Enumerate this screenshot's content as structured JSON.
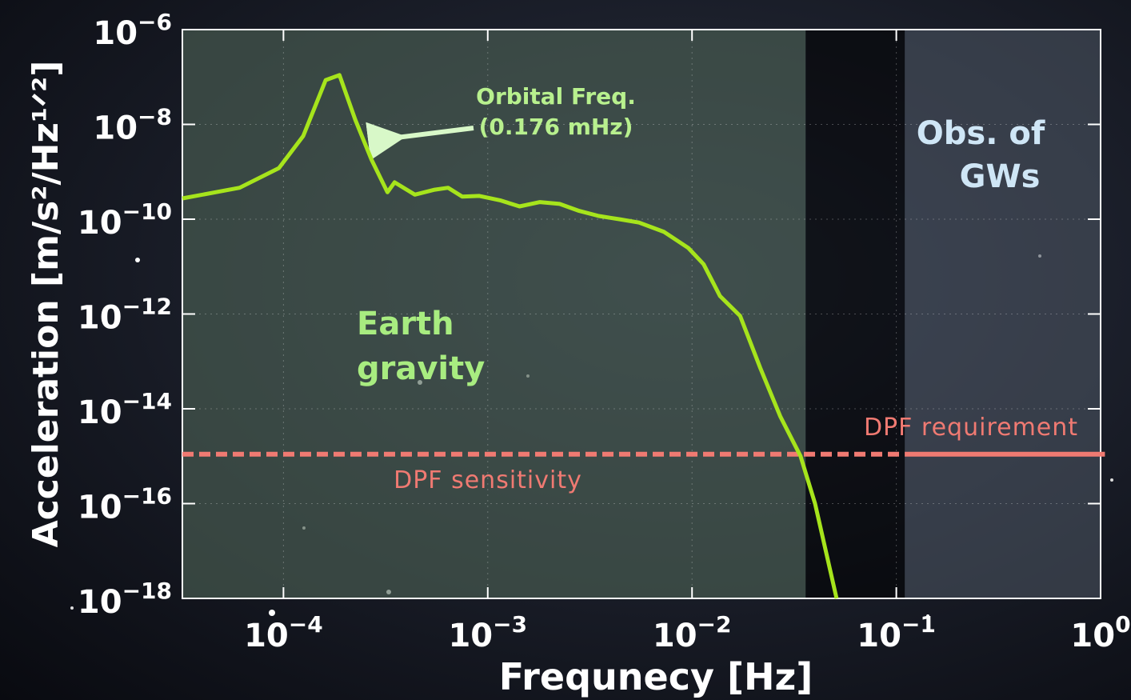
{
  "chart_data": {
    "type": "line",
    "x_label": "Frequnecy   [Hz]",
    "y_label": "Acceleration  [m/s²/Hz¹ᐟ²]",
    "log_x": true,
    "log_y": true,
    "grid": true,
    "xlim": [
      3.2e-05,
      1
    ],
    "ylim": [
      1e-18,
      1e-06
    ],
    "xticks": [
      {
        "value": 0.0001,
        "label": "10−4"
      },
      {
        "value": 0.001,
        "label": "10−3"
      },
      {
        "value": 0.01,
        "label": "10−2"
      },
      {
        "value": 0.1,
        "label": "10−1"
      },
      {
        "value": 1,
        "label": "100"
      }
    ],
    "yticks": [
      {
        "value": 1e-06,
        "label": "10−6"
      },
      {
        "value": 1e-08,
        "label": "10−8"
      },
      {
        "value": 1e-10,
        "label": "10−10"
      },
      {
        "value": 1e-12,
        "label": "10−12"
      },
      {
        "value": 1e-14,
        "label": "10−14"
      },
      {
        "value": 1e-16,
        "label": "10−16"
      },
      {
        "value": 1e-18,
        "label": "10−18"
      }
    ],
    "shaded_regions": [
      {
        "from": 3.2e-05,
        "to": 0.036,
        "color": "rgba(78,98,86,0.62)"
      },
      {
        "from": 0.036,
        "to": 0.11,
        "color": "rgba(0,0,0,0.55)"
      },
      {
        "from": 0.11,
        "to": 1,
        "color": "rgba(78,88,100,0.55)"
      }
    ],
    "series": [
      {
        "color": "#a6e41c",
        "x": [
          3.2e-05,
          6.1e-05,
          9.5e-05,
          0.000125,
          0.000161,
          0.000188,
          0.000225,
          0.00027,
          0.000323,
          0.00035,
          0.00044,
          0.00055,
          0.00064,
          0.00075,
          0.00091,
          0.00115,
          0.00143,
          0.0018,
          0.00225,
          0.0028,
          0.0035,
          0.0044,
          0.0055,
          0.0073,
          0.0096,
          0.0114,
          0.0137,
          0.0172,
          0.0216,
          0.027,
          0.034,
          0.04,
          0.051
        ],
        "values": [
          2.75e-10,
          4.6e-10,
          1.2e-09,
          5.7e-09,
          8.6e-08,
          1.1e-07,
          1.24e-08,
          1.78e-09,
          3.7e-10,
          6e-10,
          3.3e-10,
          4.2e-10,
          4.6e-10,
          3e-10,
          3.1e-10,
          2.5e-10,
          1.86e-10,
          2.3e-10,
          2.1e-10,
          1.5e-10,
          1.17e-10,
          1e-10,
          8.5e-11,
          5.4e-11,
          2.46e-11,
          1.12e-11,
          2.4e-12,
          9.1e-13,
          7.2e-14,
          7e-15,
          1e-15,
          1e-16,
          1e-18
        ]
      }
    ],
    "reference_lines": [
      {
        "value": 1.1e-15,
        "from": 3.2e-05,
        "to": 0.11,
        "style": "dashed",
        "color": "#f07a72",
        "label": "DPF sensitivity"
      },
      {
        "value": 1.1e-15,
        "from": 0.11,
        "to": 1.05,
        "style": "solid",
        "color": "#f07a72",
        "label": "DPF requirement"
      }
    ],
    "annotations": {
      "orbital": [
        "Orbital Freq.",
        "(0.176 mHz)"
      ],
      "earth": [
        "Earth",
        "gravity"
      ],
      "gws": [
        "Obs. of",
        "GWs"
      ]
    }
  }
}
